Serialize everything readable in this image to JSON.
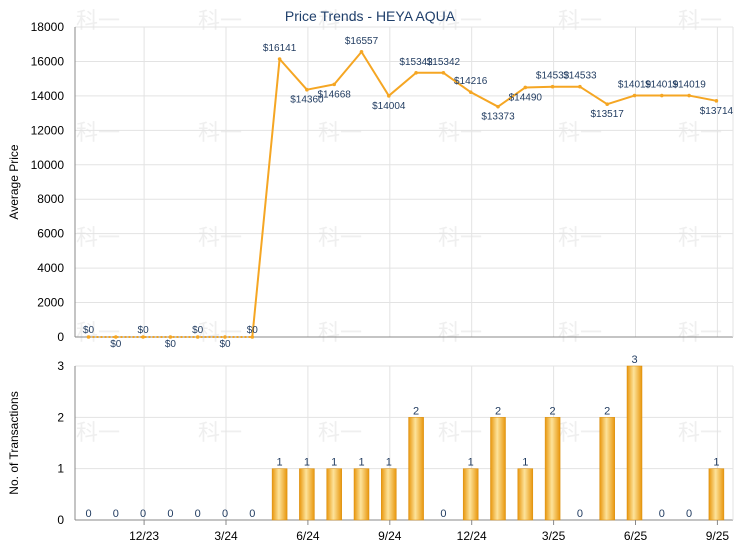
{
  "chart_data": [
    {
      "type": "line",
      "title": "Price Trends - HEYA AQUA",
      "ylabel": "Average Price",
      "ylim": [
        0,
        18000
      ],
      "yticks": [
        "0",
        "2000",
        "4000",
        "6000",
        "8000",
        "10000",
        "12000",
        "14000",
        "16000",
        "18000"
      ],
      "color": "#f5a623",
      "series": [
        {
          "values": [
            0,
            0,
            0,
            0,
            0,
            0,
            0,
            16141,
            14360,
            14668,
            16557,
            14004,
            15342,
            15342,
            14216,
            13373,
            14490,
            14533,
            14533,
            13517,
            14019,
            14019,
            14019,
            13714
          ],
          "labels": [
            "$0",
            "$0",
            "$0",
            "$0",
            "$0",
            "$0",
            "$0",
            "$16141",
            "$14360",
            "$14668",
            "$16557",
            "$14004",
            "$15342",
            "$15342",
            "$14216",
            "$13373",
            "$14490",
            "$14533",
            "$14533",
            "$13517",
            "$14019",
            "$14019",
            "$14019",
            "$13714"
          ]
        }
      ]
    },
    {
      "type": "bar",
      "ylabel": "No. of Transactions",
      "ylim": [
        0,
        3
      ],
      "yticks": [
        "0",
        "1",
        "2",
        "3"
      ],
      "categories": [
        "12/23",
        "3/24",
        "6/24",
        "9/24",
        "12/24",
        "3/25",
        "6/25",
        "9/25"
      ],
      "values": [
        0,
        0,
        0,
        0,
        0,
        0,
        0,
        1,
        1,
        1,
        1,
        1,
        2,
        0,
        1,
        2,
        1,
        2,
        0,
        2,
        3,
        0,
        0,
        1
      ],
      "labels": [
        "0",
        "0",
        "0",
        "0",
        "0",
        "0",
        "0",
        "1",
        "1",
        "1",
        "1",
        "1",
        "2",
        "0",
        "1",
        "2",
        "1",
        "2",
        "0",
        "2",
        "3",
        "0",
        "0",
        "1"
      ],
      "color": "#f5a623"
    }
  ],
  "watermark": "科一"
}
